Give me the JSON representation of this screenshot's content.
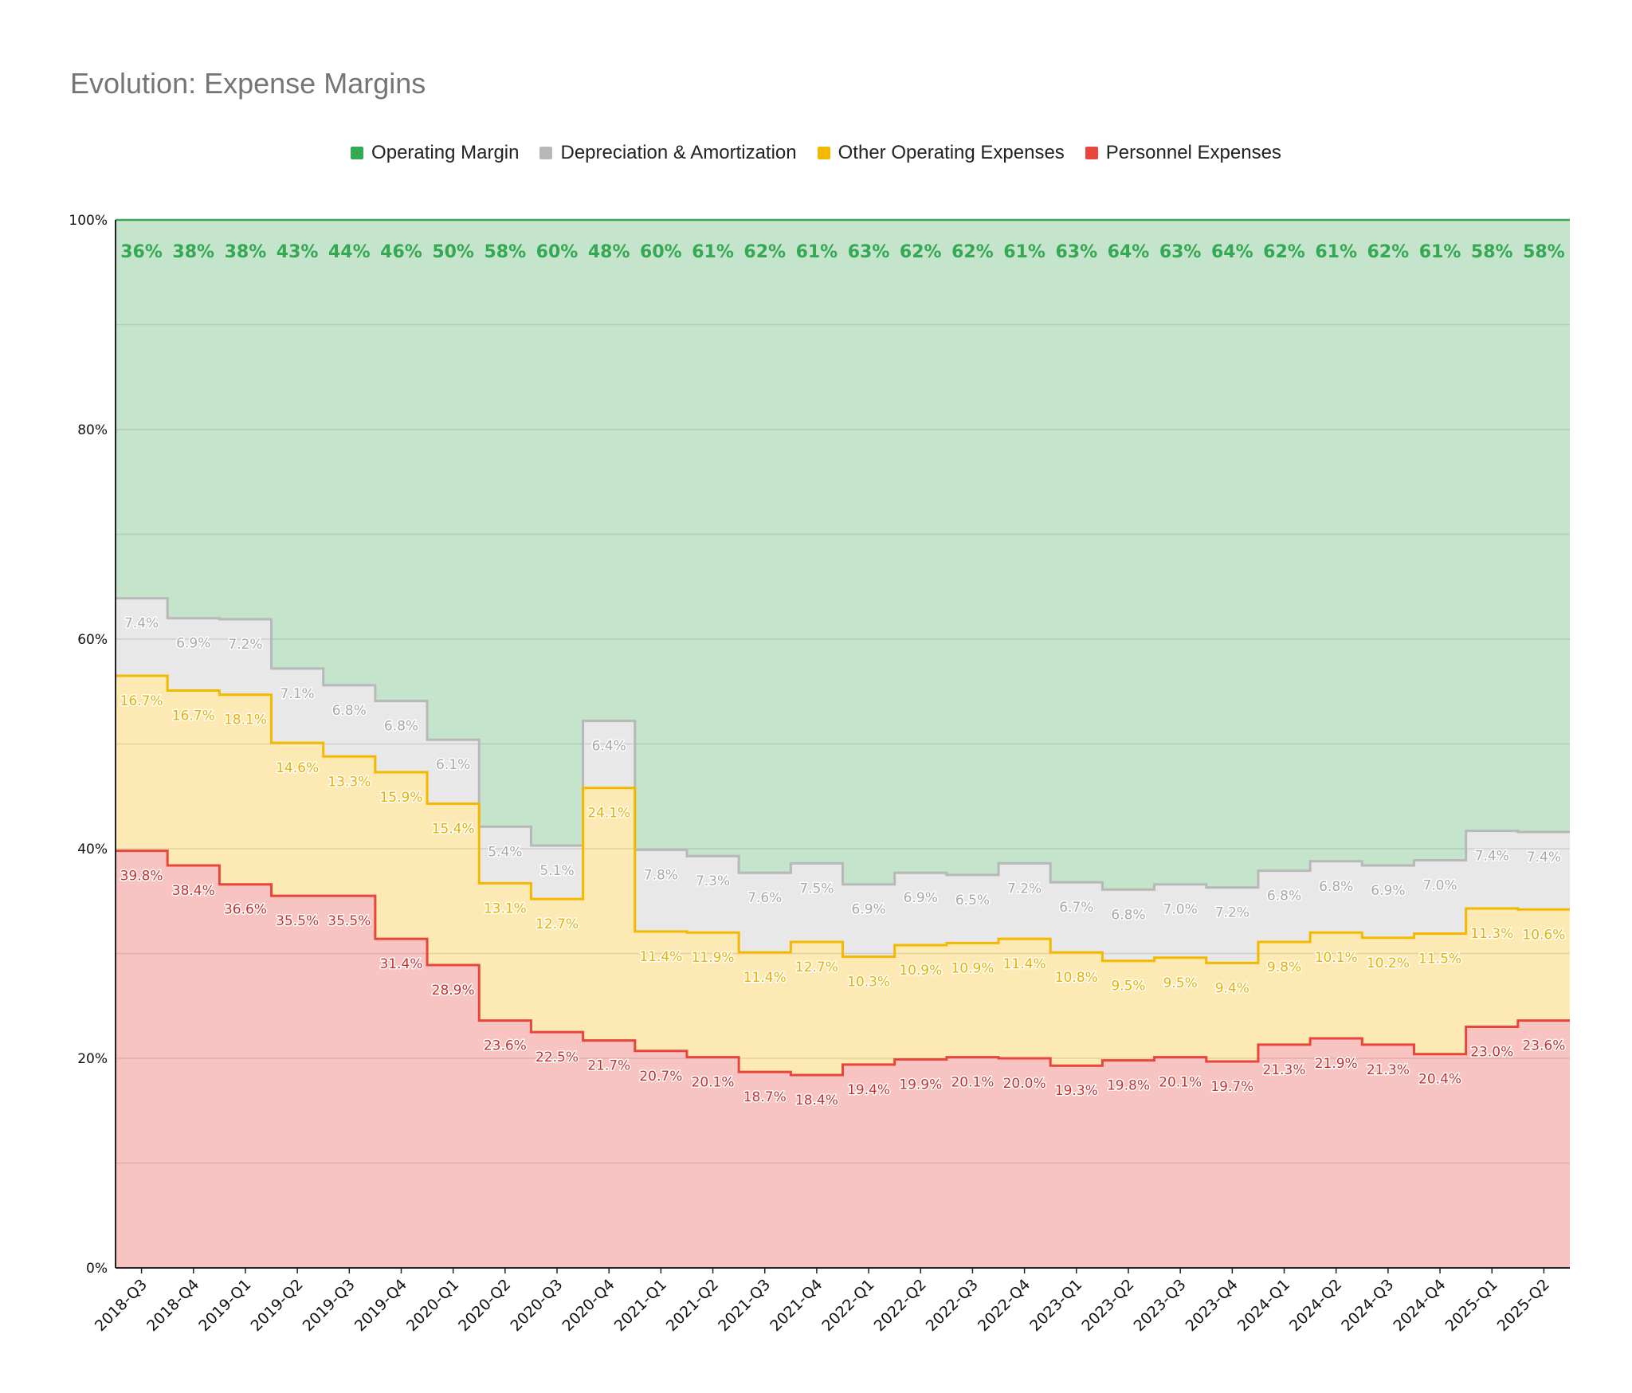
{
  "chart_data": {
    "type": "area",
    "title": "Evolution: Expense Margins",
    "xlabel": "",
    "ylabel": "",
    "stacked": true,
    "step": true,
    "ylim": [
      0,
      100
    ],
    "yticks": [
      "0%",
      "20%",
      "40%",
      "60%",
      "80%",
      "100%"
    ],
    "grid": true,
    "legend_position": "top-center",
    "categories": [
      "2018-Q3",
      "2018-Q4",
      "2019-Q1",
      "2019-Q2",
      "2019-Q3",
      "2019-Q4",
      "2020-Q1",
      "2020-Q2",
      "2020-Q3",
      "2020-Q4",
      "2021-Q1",
      "2021-Q2",
      "2021-Q3",
      "2021-Q4",
      "2022-Q1",
      "2022-Q2",
      "2022-Q3",
      "2022-Q4",
      "2023-Q1",
      "2023-Q2",
      "2023-Q3",
      "2023-Q4",
      "2024-Q1",
      "2024-Q2",
      "2024-Q3",
      "2024-Q4",
      "2025-Q1",
      "2025-Q2"
    ],
    "series": [
      {
        "name": "Personnel Expenses",
        "color": "#e8453c",
        "fill": "#f8c4c1",
        "values": [
          39.8,
          38.4,
          36.6,
          35.5,
          35.5,
          31.4,
          28.9,
          23.6,
          22.5,
          21.7,
          20.7,
          20.1,
          18.7,
          18.4,
          19.4,
          19.9,
          20.1,
          20.0,
          19.3,
          19.8,
          20.1,
          19.7,
          21.3,
          21.9,
          21.3,
          20.4,
          23.0,
          23.6
        ],
        "labels": [
          "39.8%",
          "38.4%",
          "36.6%",
          "35.5%",
          "35.5%",
          "31.4%",
          "28.9%",
          "23.6%",
          "22.5%",
          "21.7%",
          "20.7%",
          "20.1%",
          "18.7%",
          "18.4%",
          "19.4%",
          "19.9%",
          "20.1%",
          "20.0%",
          "19.3%",
          "19.8%",
          "20.1%",
          "19.7%",
          "21.3%",
          "21.9%",
          "21.3%",
          "20.4%",
          "23.0%",
          "23.6%"
        ]
      },
      {
        "name": "Other Operating Expenses",
        "color": "#f5b800",
        "fill": "#fde9b3",
        "values": [
          16.7,
          16.7,
          18.1,
          14.6,
          13.3,
          15.9,
          15.4,
          13.1,
          12.7,
          24.1,
          11.4,
          11.9,
          11.4,
          12.7,
          10.3,
          10.9,
          10.9,
          11.4,
          10.8,
          9.5,
          9.5,
          9.4,
          9.8,
          10.1,
          10.2,
          11.5,
          11.3,
          10.6
        ],
        "labels": [
          "16.7%",
          "16.7%",
          "18.1%",
          "14.6%",
          "13.3%",
          "15.9%",
          "15.4%",
          "13.1%",
          "12.7%",
          "24.1%",
          "11.4%",
          "11.9%",
          "11.4%",
          "12.7%",
          "10.3%",
          "10.9%",
          "10.9%",
          "11.4%",
          "10.8%",
          "9.5%",
          "9.5%",
          "9.4%",
          "9.8%",
          "10.1%",
          "10.2%",
          "11.5%",
          "11.3%",
          "10.6%"
        ]
      },
      {
        "name": "Depreciation & Amortization",
        "color": "#b8b8b8",
        "fill": "#e8e8e8",
        "values": [
          7.4,
          6.9,
          7.2,
          7.1,
          6.8,
          6.8,
          6.1,
          5.4,
          5.1,
          6.4,
          7.8,
          7.3,
          7.6,
          7.5,
          6.9,
          6.9,
          6.5,
          7.2,
          6.7,
          6.8,
          7.0,
          7.2,
          6.8,
          6.8,
          6.9,
          7.0,
          7.4,
          7.4
        ],
        "labels": [
          "7.4%",
          "6.9%",
          "7.2%",
          "7.1%",
          "6.8%",
          "6.8%",
          "6.1%",
          "5.4%",
          "5.1%",
          "6.4%",
          "7.8%",
          "7.3%",
          "7.6%",
          "7.5%",
          "6.9%",
          "6.9%",
          "6.5%",
          "7.2%",
          "6.7%",
          "6.8%",
          "7.0%",
          "7.2%",
          "6.8%",
          "6.8%",
          "6.9%",
          "7.0%",
          "7.4%",
          "7.4%"
        ]
      },
      {
        "name": "Operating Margin",
        "color": "#34a853",
        "fill": "#c4e5cc",
        "values": [
          36,
          38,
          38,
          43,
          44,
          46,
          50,
          58,
          60,
          48,
          60,
          61,
          62,
          61,
          63,
          62,
          62,
          61,
          63,
          64,
          63,
          64,
          62,
          61,
          62,
          61,
          58,
          58
        ],
        "labels": [
          "36%",
          "38%",
          "38%",
          "43%",
          "44%",
          "46%",
          "50%",
          "58%",
          "60%",
          "48%",
          "60%",
          "61%",
          "62%",
          "61%",
          "63%",
          "62%",
          "62%",
          "61%",
          "63%",
          "64%",
          "63%",
          "64%",
          "62%",
          "61%",
          "62%",
          "61%",
          "58%",
          "58%"
        ]
      }
    ],
    "legend_order": [
      "Operating Margin",
      "Depreciation & Amortization",
      "Other Operating Expenses",
      "Personnel Expenses"
    ]
  }
}
